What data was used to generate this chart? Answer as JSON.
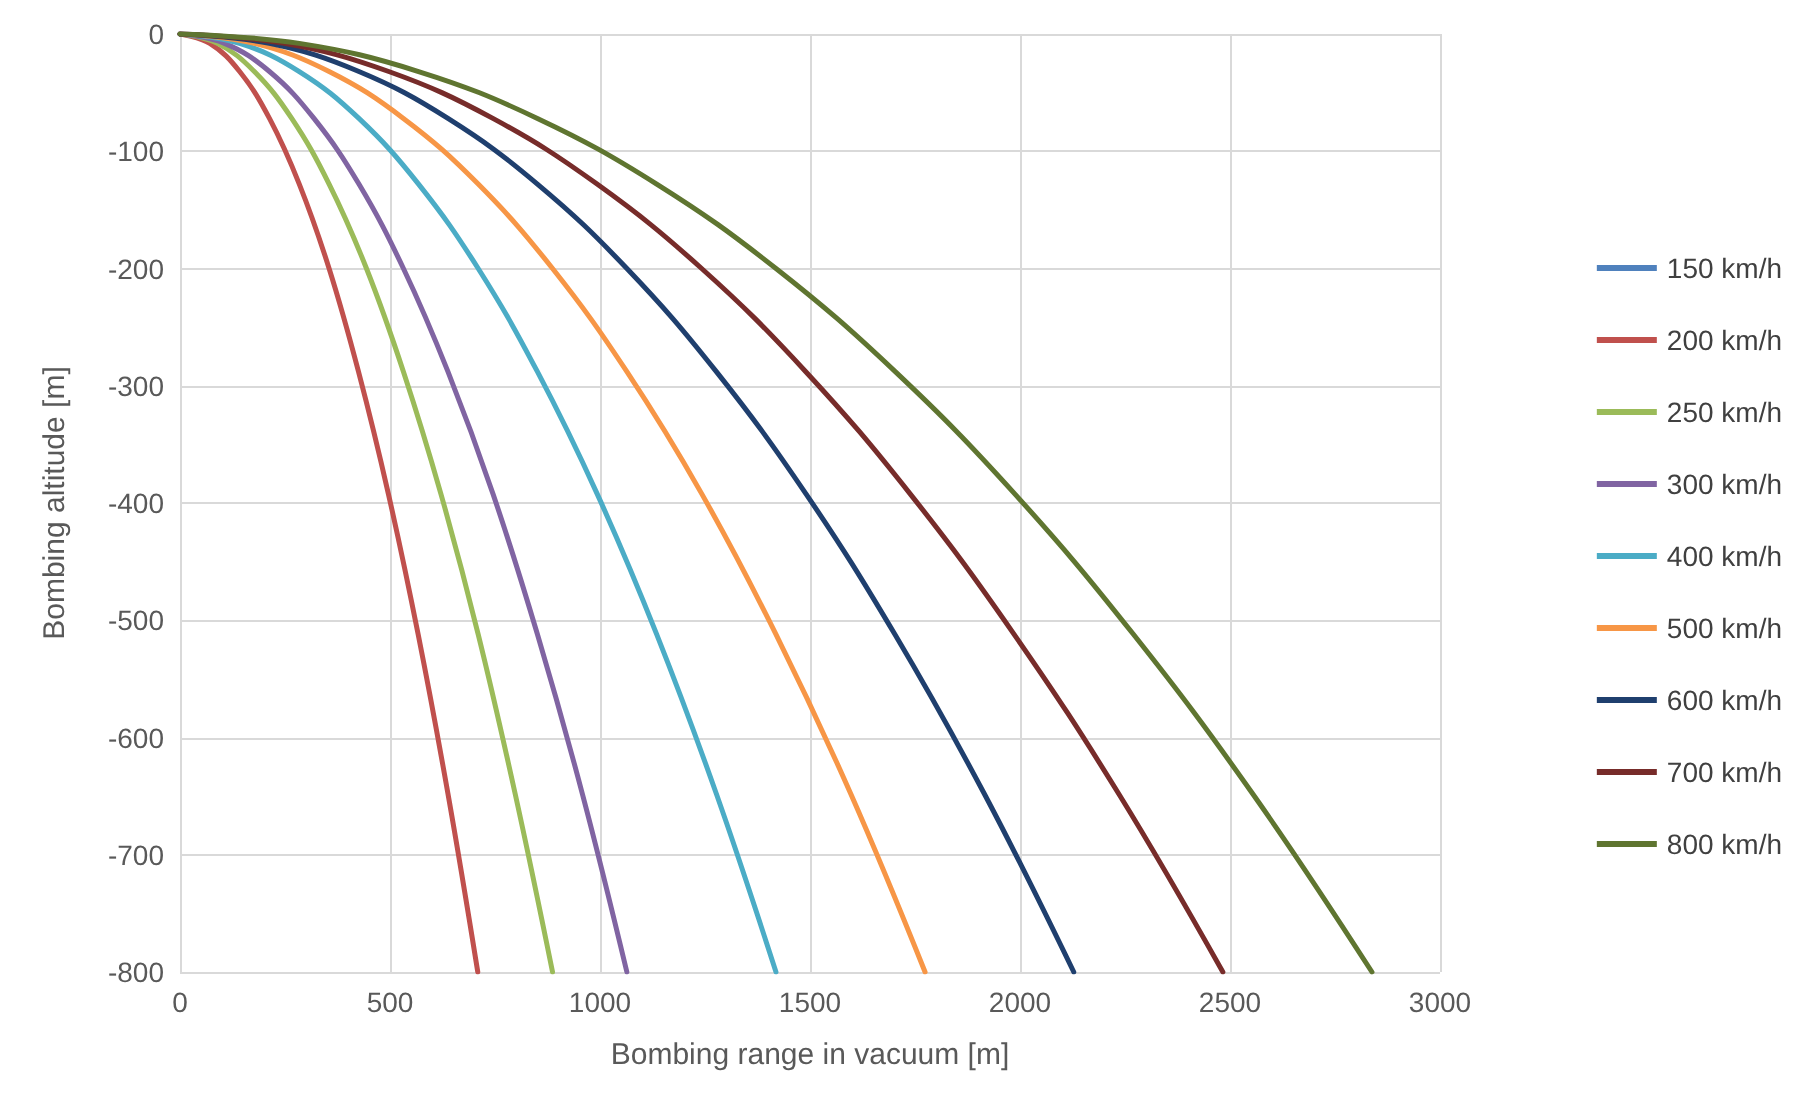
{
  "chart_data": {
    "type": "line",
    "xlabel": "Bombing range in vacuum [m]",
    "ylabel": "Bombing altitude [m]",
    "xlim": [
      0,
      3000
    ],
    "xticks": [
      0,
      500,
      1000,
      1500,
      2000,
      2500,
      3000
    ],
    "ylim": [
      -800,
      0
    ],
    "yticks": [
      -800,
      -700,
      -600,
      -500,
      -400,
      -300,
      -200,
      -100,
      0
    ],
    "grid": true,
    "legend": "right",
    "marker": "none",
    "line_style": "solid",
    "series": [
      {
        "name": "150 km/h",
        "color": "#4f81bd"
      },
      {
        "name": "200 km/h",
        "color": "#c0504d",
        "x": [
          0,
          71,
          142,
          213,
          284,
          355,
          425,
          496,
          567,
          638,
          709
        ],
        "values": [
          0,
          -8,
          -32,
          -72,
          -128,
          -200,
          -288,
          -392,
          -512,
          -648,
          -800
        ]
      },
      {
        "name": "250 km/h",
        "color": "#9bbb59",
        "x": [
          0,
          89,
          177,
          266,
          355,
          444,
          532,
          621,
          710,
          798,
          887
        ],
        "values": [
          0,
          -8,
          -32,
          -72,
          -128,
          -200,
          -288,
          -392,
          -512,
          -648,
          -800
        ]
      },
      {
        "name": "300 km/h",
        "color": "#8064a2",
        "x": [
          0,
          106,
          213,
          319,
          426,
          532,
          638,
          745,
          851,
          958,
          1064
        ],
        "values": [
          0,
          -8,
          -32,
          -72,
          -128,
          -200,
          -288,
          -392,
          -512,
          -648,
          -800
        ]
      },
      {
        "name": "400 km/h",
        "color": "#4bacc6",
        "x": [
          0,
          142,
          284,
          426,
          568,
          710,
          851,
          993,
          1135,
          1277,
          1419
        ],
        "values": [
          0,
          -8,
          -32,
          -72,
          -128,
          -200,
          -288,
          -392,
          -512,
          -648,
          -800
        ]
      },
      {
        "name": "500 km/h",
        "color": "#f79646",
        "x": [
          0,
          177,
          355,
          532,
          710,
          887,
          1064,
          1242,
          1419,
          1597,
          1774
        ],
        "values": [
          0,
          -8,
          -32,
          -72,
          -128,
          -200,
          -288,
          -392,
          -512,
          -648,
          -800
        ]
      },
      {
        "name": "600 km/h",
        "color": "#1f3f6e",
        "x": [
          0,
          213,
          426,
          638,
          851,
          1064,
          1277,
          1490,
          1702,
          1915,
          2128
        ],
        "values": [
          0,
          -8,
          -32,
          -72,
          -128,
          -200,
          -288,
          -392,
          -512,
          -648,
          -800
        ]
      },
      {
        "name": "700 km/h",
        "color": "#772c2a",
        "x": [
          0,
          248,
          497,
          745,
          993,
          1242,
          1490,
          1738,
          1986,
          2235,
          2483
        ],
        "values": [
          0,
          -8,
          -32,
          -72,
          -128,
          -200,
          -288,
          -392,
          -512,
          -648,
          -800
        ]
      },
      {
        "name": "800 km/h",
        "color": "#5f7530",
        "x": [
          0,
          284,
          568,
          851,
          1135,
          1419,
          1703,
          1987,
          2270,
          2554,
          2838
        ],
        "values": [
          0,
          -8,
          -32,
          -72,
          -128,
          -200,
          -288,
          -392,
          -512,
          -648,
          -800
        ]
      }
    ]
  }
}
